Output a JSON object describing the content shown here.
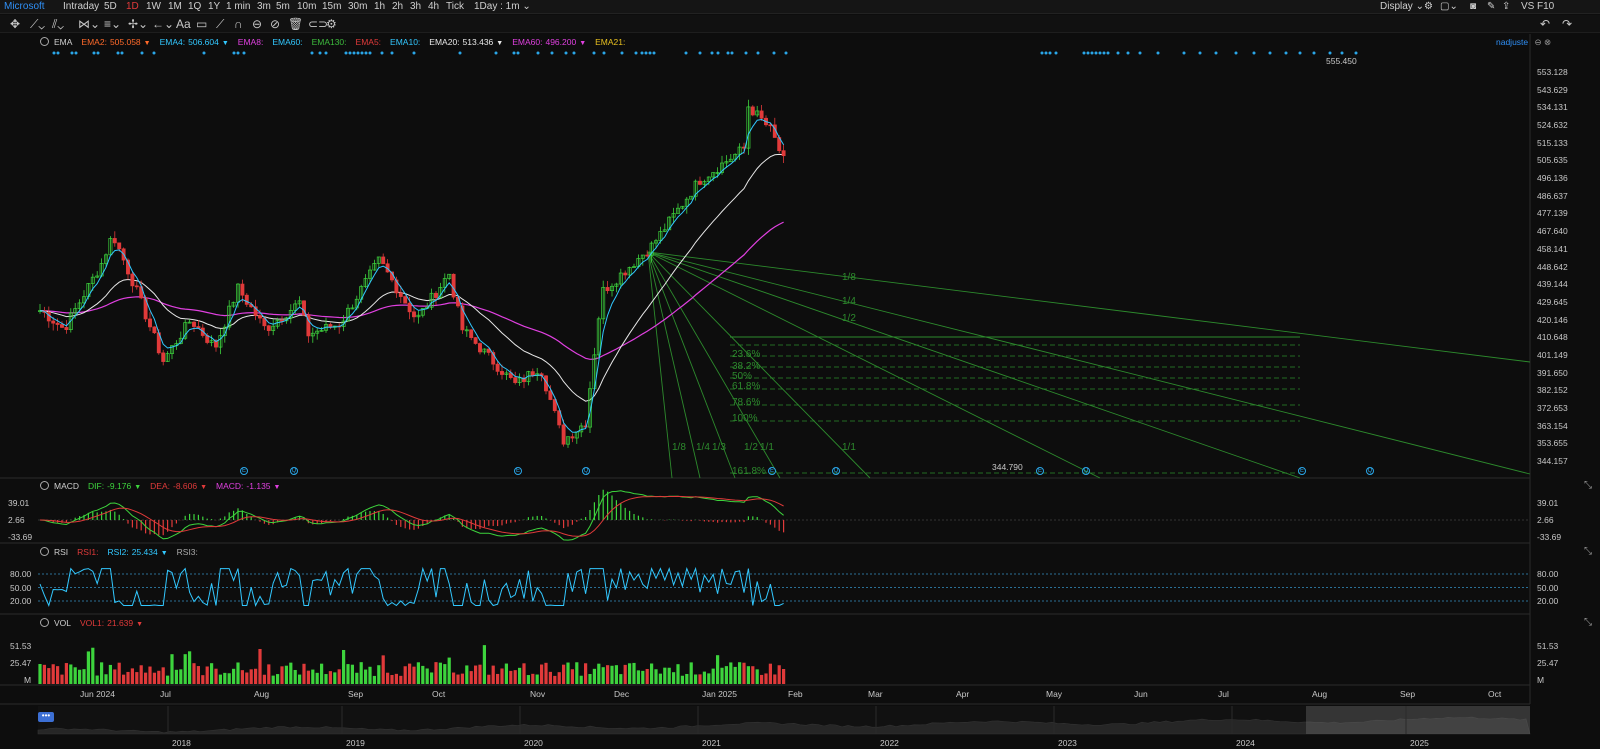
{
  "topbar": {
    "symbol": "Microsoft",
    "periods": [
      "Intraday",
      "5D",
      "1D",
      "1W",
      "1M",
      "1Q",
      "1Y",
      "1 min",
      "3m",
      "5m",
      "10m",
      "15m",
      "30m",
      "1h",
      "2h",
      "3h",
      "4h",
      "Tick"
    ],
    "active_period": "1D",
    "interval": "1Day : 1m",
    "display_label": "Display",
    "vs_label": "VS",
    "f10_label": "F10"
  },
  "main_pane": {
    "indicator": "EMA",
    "legend": [
      {
        "label": "EMA2:",
        "value": "505.058",
        "color": "#ff6a2a"
      },
      {
        "label": "EMA4:",
        "value": "506.604",
        "color": "#32c8ff"
      },
      {
        "label": "EMA8:",
        "value": "",
        "color": "#e040e0"
      },
      {
        "label": "EMA60:",
        "value": "",
        "color": "#32c8ff"
      },
      {
        "label": "EMA130:",
        "value": "",
        "color": "#3dbb3d"
      },
      {
        "label": "EMA5:",
        "value": "",
        "color": "#e03a3a"
      },
      {
        "label": "EMA10:",
        "value": "",
        "color": "#32c8ff"
      },
      {
        "label": "EMA20:",
        "value": "513.436",
        "color": "#e8e8e8"
      },
      {
        "label": "EMA60:",
        "value": "496.200",
        "color": "#e040e0"
      },
      {
        "label": "EMA21:",
        "value": "",
        "color": "#e8c020"
      }
    ],
    "adjust_label": "nadjuste",
    "y_ticks": [
      "553.128",
      "543.629",
      "534.131",
      "524.632",
      "515.133",
      "505.635",
      "496.136",
      "486.637",
      "477.139",
      "467.640",
      "458.141",
      "448.642",
      "439.144",
      "429.645",
      "420.146",
      "410.648",
      "401.149",
      "391.650",
      "382.152",
      "372.653",
      "363.154",
      "353.655",
      "344.157"
    ],
    "high_label": "555.450",
    "low_label": "344.790",
    "fib_levels": [
      "23.6%",
      "38.2%",
      "50%",
      "61.8%",
      "78.6%",
      "100%",
      "161.8%"
    ],
    "gann_labels": [
      "1/8",
      "1/4",
      "1/2",
      "1/1",
      "1/8",
      "1/4",
      "1/3",
      "1/2",
      "1/1"
    ],
    "event_markers": [
      "E",
      "Q",
      "E",
      "Q",
      "E",
      "Q",
      "E",
      "Q",
      "E",
      "Q"
    ]
  },
  "macd_pane": {
    "indicator": "MACD",
    "legend": [
      {
        "label": "DIF:",
        "value": "-9.176",
        "color": "#3dd43d"
      },
      {
        "label": "DEA:",
        "value": "-8.606",
        "color": "#e03a3a"
      },
      {
        "label": "MACD:",
        "value": "-1.135",
        "color": "#e040e0"
      }
    ],
    "y_ticks": [
      "39.01",
      "2.66",
      "-33.69"
    ]
  },
  "rsi_pane": {
    "indicator": "RSI",
    "legend": [
      {
        "label": "RSI1:",
        "value": "",
        "color": "#e03a3a"
      },
      {
        "label": "RSI2:",
        "value": "25.434",
        "color": "#32c8ff"
      },
      {
        "label": "RSI3:",
        "value": "",
        "color": "#aaaaaa"
      }
    ],
    "y_ticks": [
      "80.00",
      "50.00",
      "20.00"
    ]
  },
  "vol_pane": {
    "indicator": "VOL",
    "legend": [
      {
        "label": "VOL1:",
        "value": "21.639",
        "color": "#e03a3a"
      }
    ],
    "y_ticks": [
      "51.53",
      "25.47",
      "M"
    ],
    "y_unit_left": "M"
  },
  "time_axis": {
    "months": [
      "Jun 2024",
      "Jul",
      "Aug",
      "Sep",
      "Oct",
      "Nov",
      "Dec",
      "Jan 2025",
      "Feb",
      "Mar",
      "Apr",
      "May",
      "Jun",
      "Jul",
      "Aug",
      "Sep",
      "Oct"
    ]
  },
  "navigator": {
    "years": [
      "2018",
      "2019",
      "2020",
      "2021",
      "2022",
      "2023",
      "2024",
      "2025"
    ]
  },
  "colors": {
    "up": "#3dd43d",
    "down": "#e03a3a",
    "accent": "#2f8ff5",
    "ema_fast": "#32c8ff",
    "ema_mid": "#e8e8e8",
    "ema_slow": "#e040e0",
    "drawing": "#2d8a2d"
  },
  "chart_data": {
    "type": "candlestick",
    "title": "",
    "y_range": [
      344.157,
      553.128
    ],
    "anchors": [
      {
        "date": "2024-05-22",
        "close": 425
      },
      {
        "date": "2024-06-05",
        "close": 415
      },
      {
        "date": "2024-06-28",
        "close": 450
      },
      {
        "date": "2024-07-05",
        "close": 466
      },
      {
        "date": "2024-07-19",
        "close": 437
      },
      {
        "date": "2024-08-05",
        "close": 398
      },
      {
        "date": "2024-08-22",
        "close": 420
      },
      {
        "date": "2024-09-06",
        "close": 405
      },
      {
        "date": "2024-09-20",
        "close": 437
      },
      {
        "date": "2024-10-07",
        "close": 415
      },
      {
        "date": "2024-10-29",
        "close": 430
      },
      {
        "date": "2024-11-01",
        "close": 412
      },
      {
        "date": "2024-11-22",
        "close": 418
      },
      {
        "date": "2024-12-16",
        "close": 452
      },
      {
        "date": "2025-01-08",
        "close": 420
      },
      {
        "date": "2025-01-28",
        "close": 445
      },
      {
        "date": "2025-02-05",
        "close": 415
      },
      {
        "date": "2025-03-10",
        "close": 385
      },
      {
        "date": "2025-03-25",
        "close": 395
      },
      {
        "date": "2025-04-08",
        "close": 355
      },
      {
        "date": "2025-04-22",
        "close": 365
      },
      {
        "date": "2025-05-02",
        "close": 435
      },
      {
        "date": "2025-06-02",
        "close": 460
      },
      {
        "date": "2025-07-01",
        "close": 495
      },
      {
        "date": "2025-07-30",
        "close": 513
      },
      {
        "date": "2025-07-31",
        "close": 535
      },
      {
        "date": "2025-08-14",
        "close": 522
      },
      {
        "date": "2025-08-22",
        "close": 505
      }
    ],
    "ema_labels": {
      "fast": "EMA4",
      "mid": "EMA20",
      "slow": "EMA60"
    }
  }
}
